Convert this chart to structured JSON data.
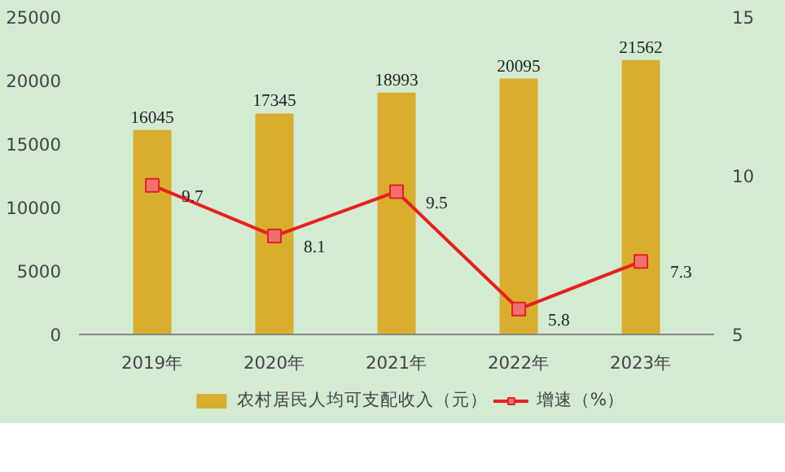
{
  "chart_data": {
    "type": "bar",
    "categories": [
      "2019年",
      "2020年",
      "2021年",
      "2022年",
      "2023年"
    ],
    "series": [
      {
        "name": "农村居民人均可支配收入（元）",
        "type": "bar",
        "color": "#d9ad2e",
        "values": [
          16045,
          17345,
          18993,
          20095,
          21562
        ]
      },
      {
        "name": "增速（%）",
        "type": "line",
        "axis": "y2",
        "color": "#e8201e",
        "values": [
          9.7,
          8.1,
          9.5,
          5.8,
          7.3
        ],
        "marker": "square"
      }
    ],
    "ylim": [
      0,
      25000
    ],
    "yticks": [
      0,
      5000,
      10000,
      15000,
      20000,
      25000
    ],
    "y2lim": [
      5,
      15
    ],
    "y2ticks": [
      5,
      10,
      15
    ],
    "data_labels": true,
    "legend": "bottom",
    "grid": false
  }
}
